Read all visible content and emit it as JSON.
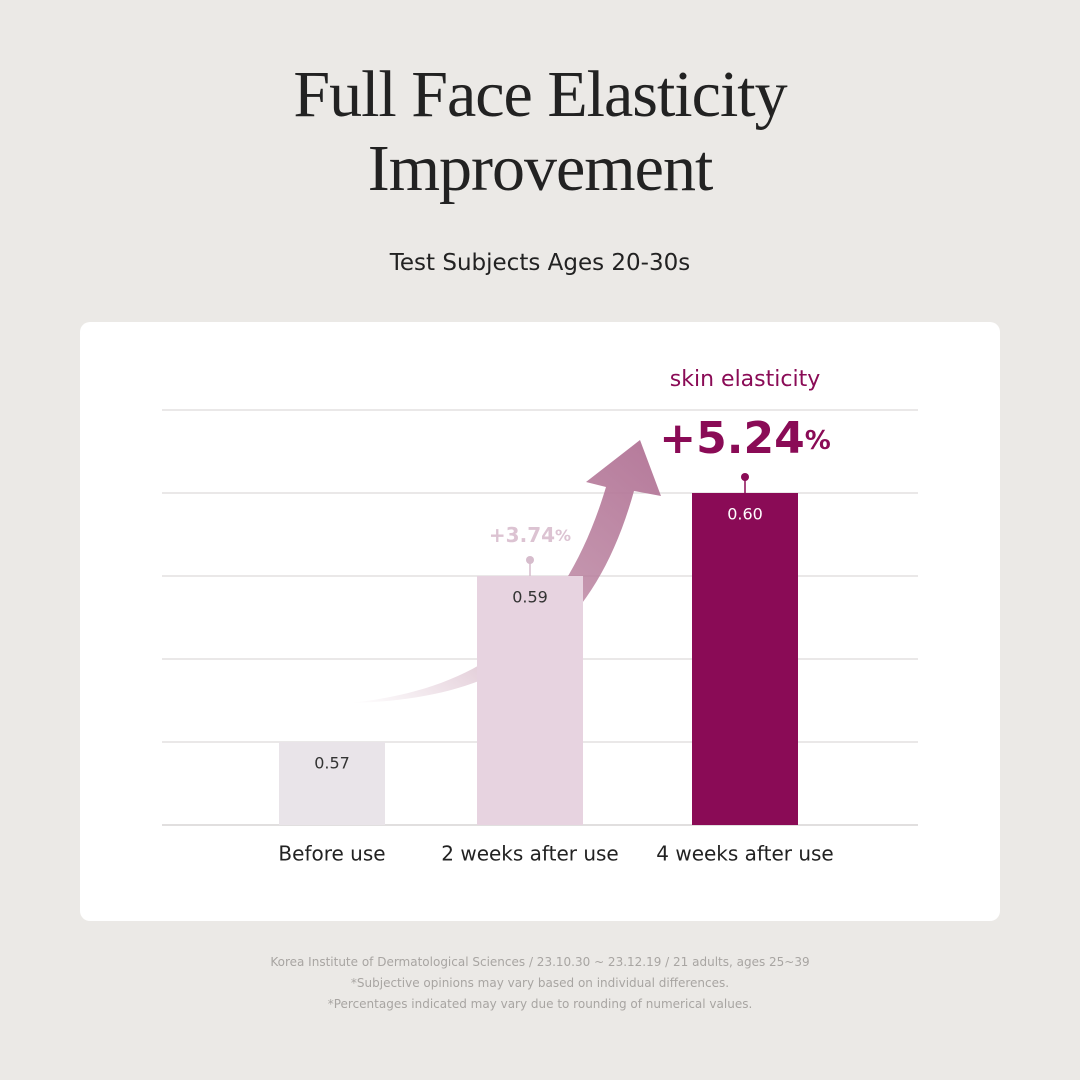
{
  "chart_data": {
    "type": "bar",
    "title": "Full Face Elasticity Improvement",
    "subtitle": "Test Subjects Ages 20-30s",
    "categories": [
      "Before use",
      "2 weeks after use",
      "4 weeks after use"
    ],
    "values": [
      0.57,
      0.59,
      0.6
    ],
    "value_labels": [
      "0.57",
      "0.59",
      "0.60"
    ],
    "colors": [
      "#e9e4e9",
      "#e7d3e0",
      "#8a0b56"
    ],
    "ylim": [
      0.56,
      0.61
    ],
    "yticks": [
      0.56,
      0.57,
      0.58,
      0.59,
      0.6,
      0.61
    ],
    "grid": true,
    "annotation_title": "skin elasticity",
    "changes": [
      "+3.74%",
      "+5.24%"
    ],
    "footnotes": [
      "Korea Institute of Dermatological Sciences / 23.10.30 ~ 23.12.19 / 21 adults, ages 25~39",
      "*Subjective opinions may vary based on individual differences.",
      "*Percentages indicated may vary due to rounding of numerical values."
    ]
  }
}
